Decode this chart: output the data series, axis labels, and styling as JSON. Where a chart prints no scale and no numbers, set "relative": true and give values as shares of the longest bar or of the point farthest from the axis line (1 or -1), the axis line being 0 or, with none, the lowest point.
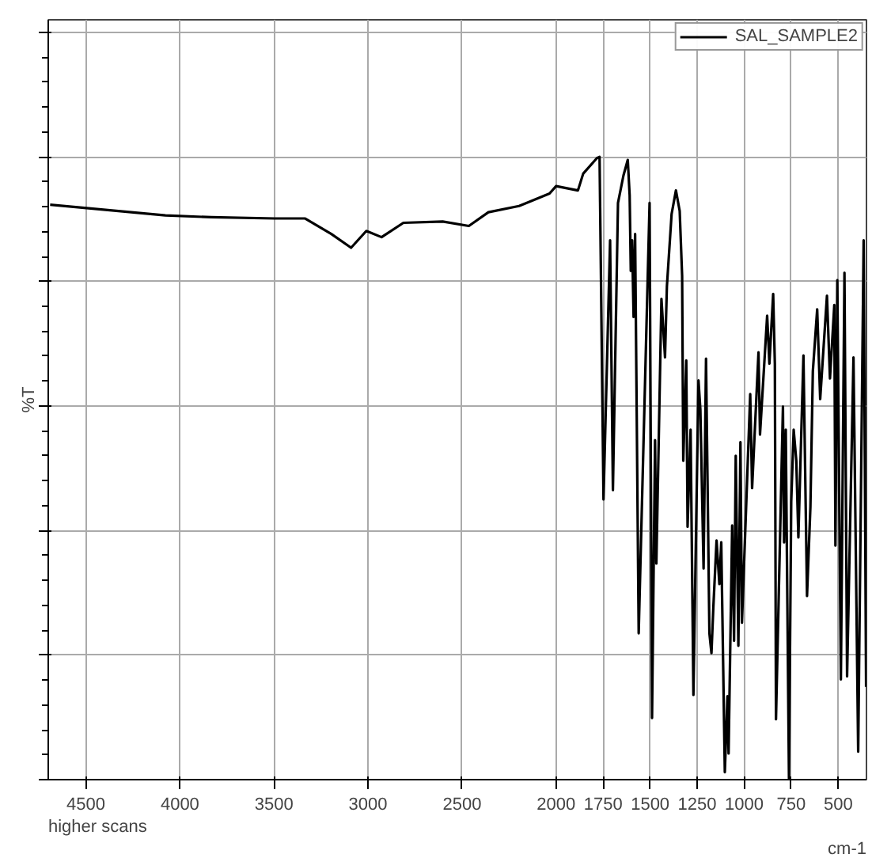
{
  "chart_data": {
    "type": "line",
    "relative": true,
    "xlabel": "cm-1",
    "ylabel": "%T",
    "annotations": [
      "higher scans"
    ],
    "xlim": [
      4700,
      350
    ],
    "xticks": [
      4500,
      4000,
      3500,
      3000,
      2500,
      2000,
      1750,
      1500,
      1250,
      1000,
      750,
      500
    ],
    "grid": true,
    "legend": "top right",
    "tick_labels": "x",
    "line_style": "solid",
    "marker": "none",
    "x": [
      4690,
      4077,
      3833,
      3497,
      3334,
      3195,
      3090,
      3009,
      2928,
      2812,
      2603,
      2464,
      2360,
      2197,
      2035,
      2000,
      1884,
      1856,
      1783,
      1769,
      1748,
      1713,
      1698,
      1671,
      1642,
      1619,
      1609,
      1603,
      1596,
      1588,
      1580,
      1561,
      1503,
      1490,
      1474,
      1467,
      1440,
      1421,
      1411,
      1386,
      1363,
      1343,
      1330,
      1324,
      1308,
      1301,
      1285,
      1270,
      1243,
      1233,
      1216,
      1203,
      1185,
      1174,
      1164,
      1147,
      1132,
      1122,
      1103,
      1089,
      1083,
      1064,
      1054,
      1045,
      1031,
      1020,
      1012,
      968,
      958,
      924,
      916,
      878,
      866,
      846,
      837,
      831,
      794,
      788,
      779,
      762,
      750,
      737,
      723,
      712,
      685,
      666,
      648,
      635,
      612,
      596,
      560,
      544,
      521,
      515,
      505,
      486,
      467,
      453,
      419,
      394,
      365,
      352
    ],
    "series": [
      {
        "name": "SAL_SAMPLE2",
        "color": "#000000",
        "values": [
          0.923,
          0.906,
          0.903,
          0.901,
          0.901,
          0.876,
          0.854,
          0.881,
          0.871,
          0.894,
          0.896,
          0.889,
          0.911,
          0.921,
          0.941,
          0.953,
          0.946,
          0.973,
          0.998,
          1.0,
          0.45,
          0.866,
          0.465,
          0.926,
          0.97,
          0.995,
          0.938,
          0.817,
          0.866,
          0.743,
          0.876,
          0.235,
          0.926,
          0.099,
          0.545,
          0.347,
          0.772,
          0.678,
          0.792,
          0.908,
          0.946,
          0.913,
          0.809,
          0.512,
          0.673,
          0.406,
          0.562,
          0.136,
          0.641,
          0.594,
          0.339,
          0.676,
          0.235,
          0.203,
          0.277,
          0.384,
          0.314,
          0.381,
          0.012,
          0.134,
          0.042,
          0.408,
          0.223,
          0.52,
          0.215,
          0.542,
          0.252,
          0.619,
          0.468,
          0.686,
          0.554,
          0.745,
          0.668,
          0.78,
          0.668,
          0.097,
          0.599,
          0.381,
          0.562,
          0.002,
          0.446,
          0.562,
          0.512,
          0.389,
          0.681,
          0.295,
          0.438,
          0.656,
          0.755,
          0.611,
          0.777,
          0.644,
          0.762,
          0.376,
          0.802,
          0.161,
          0.814,
          0.166,
          0.678,
          0.045,
          0.866,
          0.149
        ]
      }
    ]
  }
}
